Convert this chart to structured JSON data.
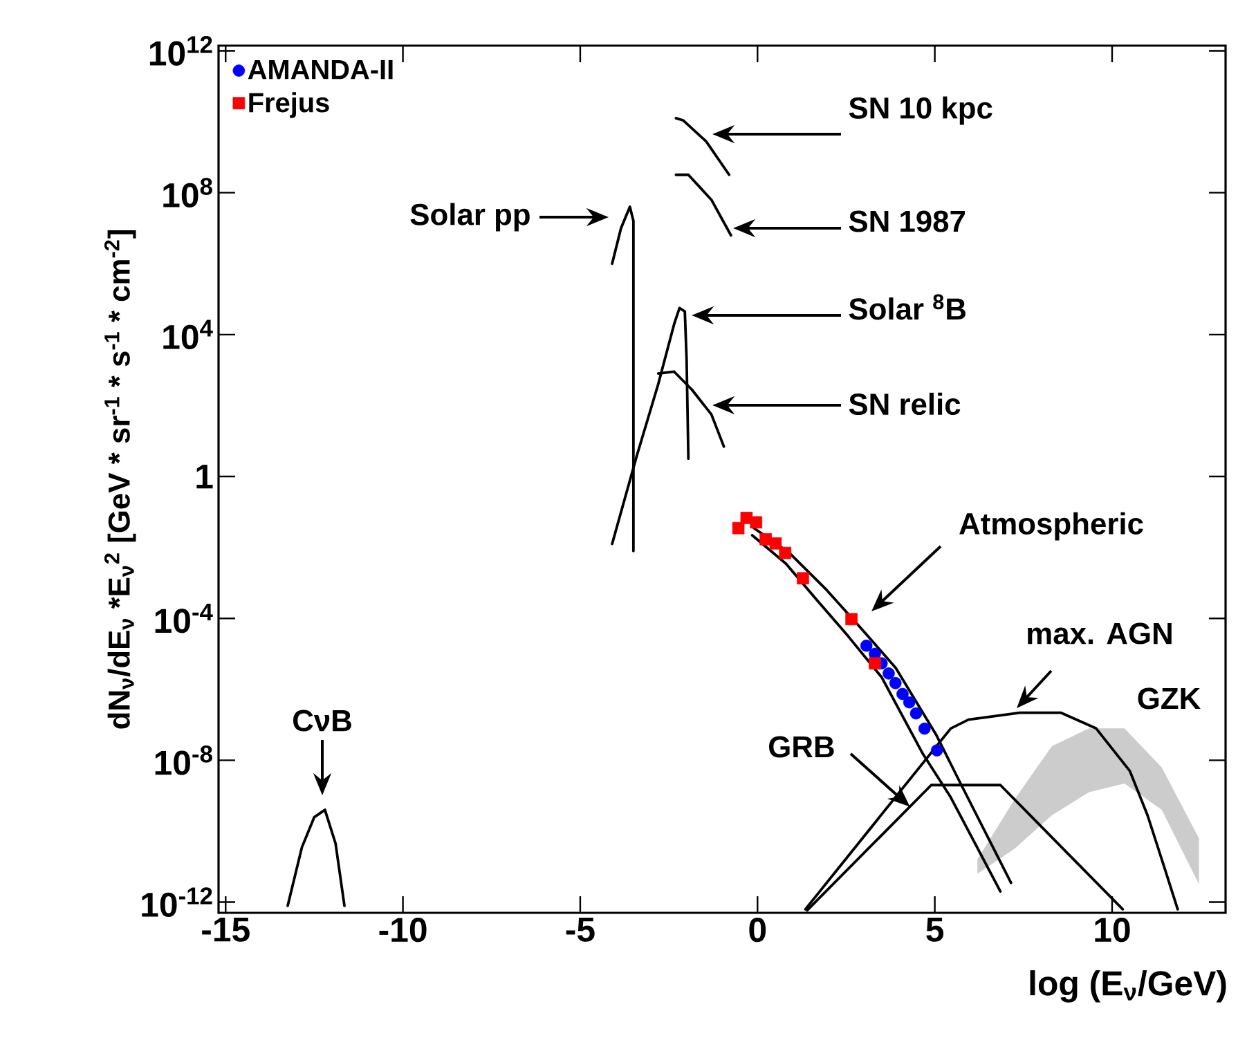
{
  "chart_data": {
    "type": "line",
    "xlabel": "log (E$_{ν}$/GeV)",
    "ylabel": "dN$_{ν}$/dE$_{ν}$ *E$_{ν}$$^{2}$ [GeV * sr$^{-1}$ * s$^{-1}$ * cm$^{-2}$]",
    "xlim": [
      -15.2,
      13.2
    ],
    "ylim": [
      5e-13,
      1400000000000.0
    ],
    "log": "y",
    "xticks": [
      -15,
      -10,
      -5,
      0,
      5,
      10
    ],
    "yticks": [
      {
        "value": 1e-12,
        "label": "10$^{-12}$"
      },
      {
        "value": 1e-08,
        "label": "10$^{-8}$"
      },
      {
        "value": 0.0001,
        "label": "10$^{-4}$"
      },
      1,
      {
        "value": 10000.0,
        "label": "10$^{4}$"
      },
      {
        "value": 100000000.0,
        "label": "10$^{8}$"
      },
      {
        "value": 1000000000000.0,
        "label": "10$^{12}$"
      }
    ],
    "legend": "top left",
    "grid": false,
    "series": [
      {
        "name": "AMANDA-II",
        "type": "scatter",
        "marker": "circle",
        "color": "#0000ff",
        "x": [
          3.07,
          3.31,
          3.5,
          3.7,
          3.89,
          4.09,
          4.28,
          4.47,
          4.71,
          5.06
        ],
        "values": [
          1.7e-05,
          1e-05,
          5.4e-06,
          2.8e-06,
          1.5e-06,
          7.4e-07,
          4.3e-07,
          2.1e-07,
          7.8e-08,
          1.9e-08
        ]
      },
      {
        "name": "Frejus",
        "type": "scatter",
        "marker": "square",
        "color": "#ff0000",
        "x": [
          -0.54,
          -0.31,
          -0.04,
          0.23,
          0.51,
          0.78,
          1.28,
          2.65,
          3.31
        ],
        "values": [
          0.035,
          0.068,
          0.051,
          0.017,
          0.013,
          0.007,
          0.00135,
          9.5e-05,
          5.4e-06
        ]
      },
      {
        "color": "#000000",
        "x": [
          -4.1,
          -3.85,
          -3.6,
          -3.5,
          -3.5
        ],
        "values": [
          1000000.0,
          10000000.0,
          40000000.0,
          16000000.0,
          0.0079
        ]
      },
      {
        "color": "#000000",
        "x": [
          -4.1,
          -3.4,
          -2.8,
          -2.35,
          -2.2,
          -2.05,
          -2.0,
          -1.95
        ],
        "values": [
          0.0126,
          4,
          400,
          20000.0,
          56000.0,
          45000.0,
          2000,
          3.2
        ]
      },
      {
        "color": "#000000",
        "x": [
          -2.8,
          -2.35,
          -1.85,
          -1.3,
          -0.95
        ],
        "values": [
          800,
          900,
          280,
          56,
          7
        ]
      },
      {
        "color": "#000000",
        "x": [
          -2.3,
          -2.1,
          -1.45,
          -0.8
        ],
        "values": [
          12600000000.0,
          11000000000.0,
          2800000000.0,
          320000000.0
        ]
      },
      {
        "color": "#000000",
        "x": [
          -2.3,
          -1.95,
          -1.3,
          -0.75
        ],
        "values": [
          320000000.0,
          320000000.0,
          63000000.0,
          6300000.0
        ]
      },
      {
        "color": "#000000",
        "x": [
          -0.1,
          0.9,
          1.95,
          2.85,
          3.9,
          5.05,
          5.7,
          7.15
        ],
        "values": [
          0.035,
          0.007,
          0.00063,
          6.3e-05,
          4e-06,
          5e-08,
          2.5e-09,
          3.5e-12
        ]
      },
      {
        "color": "#000000",
        "x": [
          -0.15,
          0.8,
          1.65,
          2.55,
          3.5,
          4.65,
          5.45,
          6.85
        ],
        "values": [
          0.022,
          0.0035,
          0.00035,
          3.2e-05,
          2.2e-06,
          1.6e-08,
          9e-10,
          2e-12
        ]
      },
      {
        "color": "#000000",
        "x": [
          1.4,
          4.9,
          6.85,
          10.3
        ],
        "values": [
          5.9e-13,
          2e-09,
          2e-09,
          6.3e-13
        ]
      },
      {
        "color": "#000000",
        "x": [
          1.35,
          5.45,
          5.95,
          7.4,
          8.55,
          9.55,
          10.5,
          11.0,
          11.5,
          11.85
        ],
        "values": [
          6.3e-13,
          7.9e-08,
          1.4e-07,
          2.2e-07,
          2.2e-07,
          7.9e-08,
          5e-09,
          2.8e-10,
          7.9e-12,
          6.3e-13
        ]
      },
      {
        "color": "#000000",
        "x": [
          -13.25,
          -12.85,
          -12.5,
          -12.2,
          -11.9,
          -11.65
        ],
        "values": [
          7.9e-13,
          3.5e-11,
          2.5e-10,
          4e-10,
          4.5e-11,
          7.9e-13
        ]
      },
      {
        "type": "area",
        "color": "#cccccc",
        "x": [
          6.2,
          7.25,
          8.3,
          9.35,
          10.35,
          11.4,
          12.45
        ],
        "values": [
          null,
          null,
          null,
          null,
          null,
          null,
          null
        ],
        "lower": [
          6.3e-12,
          3.2e-11,
          2.8e-10,
          1.26e-09,
          2.2e-09,
          4e-10,
          3.2e-12
        ],
        "upper": [
          1.6e-11,
          7.9e-10,
          2.5e-08,
          7.9e-08,
          7.9e-08,
          6.3e-09,
          6.3e-11
        ]
      }
    ],
    "annotations": [
      "SN 10 kpc",
      "SN 1987",
      "Solar pp",
      "Solar $^{8}$B",
      "SN relic",
      "Atmospheric",
      "max. AGN",
      {
        "text": "GRB",
        "x": 4.3,
        "y": 4.9e-10
      },
      "CνB",
      "GZK"
    ]
  }
}
